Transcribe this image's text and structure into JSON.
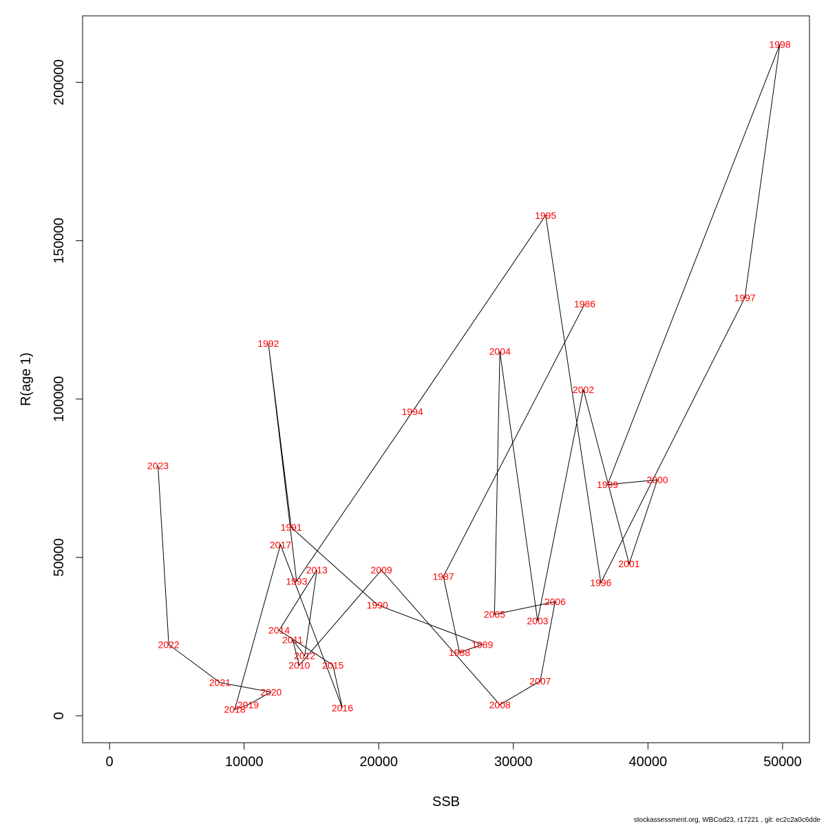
{
  "chart_data": {
    "type": "line",
    "xlabel": "SSB",
    "ylabel": "R(age 1)",
    "xlim": [
      -2000,
      52000
    ],
    "ylim": [
      -8500,
      221000
    ],
    "x_ticks": [
      0,
      10000,
      20000,
      30000,
      40000,
      50000
    ],
    "y_ticks": [
      0,
      50000,
      100000,
      150000,
      200000
    ],
    "line_color": "#000000",
    "label_color": "#ff0000",
    "points": [
      {
        "label": "1986",
        "x": 35300,
        "y": 130000
      },
      {
        "label": "1987",
        "x": 24800,
        "y": 44000
      },
      {
        "label": "1988",
        "x": 26000,
        "y": 20000
      },
      {
        "label": "1989",
        "x": 27700,
        "y": 22500
      },
      {
        "label": "1990",
        "x": 19900,
        "y": 35000
      },
      {
        "label": "1991",
        "x": 13500,
        "y": 59500
      },
      {
        "label": "1992",
        "x": 11800,
        "y": 117500
      },
      {
        "label": "1993",
        "x": 13900,
        "y": 42500
      },
      {
        "label": "1994",
        "x": 22500,
        "y": 96000
      },
      {
        "label": "1995",
        "x": 32400,
        "y": 158000
      },
      {
        "label": "1996",
        "x": 36500,
        "y": 42000
      },
      {
        "label": "1997",
        "x": 47200,
        "y": 132000
      },
      {
        "label": "1998",
        "x": 49800,
        "y": 212000
      },
      {
        "label": "1999",
        "x": 37000,
        "y": 73000
      },
      {
        "label": "2000",
        "x": 40700,
        "y": 74500
      },
      {
        "label": "2001",
        "x": 38600,
        "y": 48000
      },
      {
        "label": "2002",
        "x": 35200,
        "y": 103000
      },
      {
        "label": "2003",
        "x": 31800,
        "y": 30000
      },
      {
        "label": "2004",
        "x": 29000,
        "y": 115000
      },
      {
        "label": "2005",
        "x": 28600,
        "y": 32000
      },
      {
        "label": "2006",
        "x": 33100,
        "y": 36000
      },
      {
        "label": "2007",
        "x": 32000,
        "y": 11000
      },
      {
        "label": "2008",
        "x": 29000,
        "y": 3500
      },
      {
        "label": "2009",
        "x": 20200,
        "y": 46000
      },
      {
        "label": "2010",
        "x": 14100,
        "y": 16000
      },
      {
        "label": "2011",
        "x": 13600,
        "y": 24000
      },
      {
        "label": "2012",
        "x": 14500,
        "y": 19000
      },
      {
        "label": "2013",
        "x": 15400,
        "y": 46000
      },
      {
        "label": "2014",
        "x": 12600,
        "y": 27000
      },
      {
        "label": "2015",
        "x": 16600,
        "y": 16000
      },
      {
        "label": "2016",
        "x": 17300,
        "y": 2500
      },
      {
        "label": "2017",
        "x": 12700,
        "y": 54000
      },
      {
        "label": "2018",
        "x": 9300,
        "y": 2000
      },
      {
        "label": "2019",
        "x": 10300,
        "y": 3500
      },
      {
        "label": "2020",
        "x": 12000,
        "y": 7500
      },
      {
        "label": "2021",
        "x": 8200,
        "y": 10500
      },
      {
        "label": "2022",
        "x": 4400,
        "y": 22500
      },
      {
        "label": "2023",
        "x": 3600,
        "y": 79000
      }
    ]
  },
  "footer": "stockassessment.org, WBCod23, r17221 , git: ec2c2a0c6dde"
}
